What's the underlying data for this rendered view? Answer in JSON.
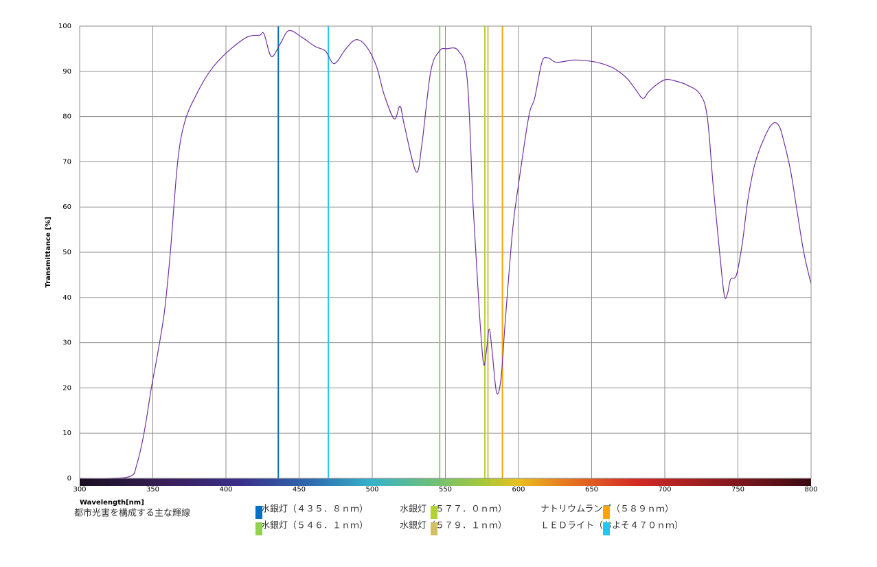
{
  "chart_data": {
    "type": "line",
    "xlabel": "Wavelength[nm]",
    "ylabel": "Transmittance [%]",
    "xlim": [
      300,
      800
    ],
    "xticks": [
      300,
      350,
      400,
      450,
      500,
      550,
      600,
      650,
      700,
      750,
      800
    ],
    "ylim": [
      0,
      100
    ],
    "yticks": [
      0,
      10,
      20,
      30,
      40,
      50,
      60,
      70,
      80,
      90,
      100
    ],
    "grid": true,
    "series": [
      {
        "color": "#7030a0",
        "x": [
          300,
          320,
          335,
          339,
          344,
          349,
          353,
          358,
          362,
          367,
          372,
          380,
          389,
          400,
          414,
          423,
          426,
          431,
          437,
          443,
          452,
          461,
          468,
          474,
          482,
          489,
          496,
          503,
          508,
          515,
          519,
          522,
          530,
          534,
          540,
          546,
          551,
          559,
          565,
          569,
          573,
          576,
          578,
          580,
          582,
          585,
          588,
          591,
          596,
          600,
          607,
          611,
          616,
          620,
          626,
          638,
          650,
          659,
          666,
          674,
          680,
          685,
          689,
          695,
          701,
          708,
          715,
          724,
          729,
          733,
          736,
          739,
          741,
          743,
          745,
          749,
          753,
          757,
          762,
          769,
          774,
          778,
          781,
          786,
          790,
          795,
          800
        ],
        "values": [
          0,
          0,
          0.5,
          3,
          10,
          20,
          27,
          37,
          50,
          70,
          79,
          85,
          90,
          94,
          97.5,
          98,
          98.3,
          93.3,
          96,
          99,
          97.5,
          95.5,
          94.5,
          91.7,
          95,
          97,
          95.5,
          91,
          85,
          79.5,
          82.3,
          78,
          67.8,
          74,
          90,
          94.5,
          95,
          94.5,
          88,
          60,
          38,
          25.5,
          28,
          33,
          28,
          19,
          22,
          35,
          55,
          65,
          80,
          84,
          92,
          93,
          92,
          92.5,
          92.2,
          91.5,
          90.5,
          88.5,
          86,
          84,
          85.5,
          87.2,
          88.2,
          87.8,
          87,
          85,
          80,
          65,
          55,
          45,
          40,
          41,
          44,
          45,
          52,
          62,
          70,
          76,
          78.5,
          78,
          75,
          68,
          60,
          50,
          43
        ]
      }
    ],
    "legend_title": "都市光害を構成する主な輝線",
    "reference_lines": [
      {
        "name": "水銀灯（４３５．８ｎｍ）",
        "x": 435.8,
        "color": "#0070c0"
      },
      {
        "name": "水銀灯（５７７．０ｎｍ）",
        "x": 577.0,
        "color": "#b4d22e"
      },
      {
        "name": "ナトリウムランプ（５８９ｎｍ）",
        "x": 589,
        "color": "#ffa500"
      },
      {
        "name": "水銀灯（５４６．１ｎｍ）",
        "x": 546.1,
        "color": "#92d050"
      },
      {
        "name": "水銀灯（５７９．１ｎｍ）",
        "x": 579.1,
        "color": "#d4c060"
      },
      {
        "name": "ＬＥＤライト（およそ４７０ｎｍ）",
        "x": 470,
        "color": "#1ec8f0"
      }
    ]
  }
}
